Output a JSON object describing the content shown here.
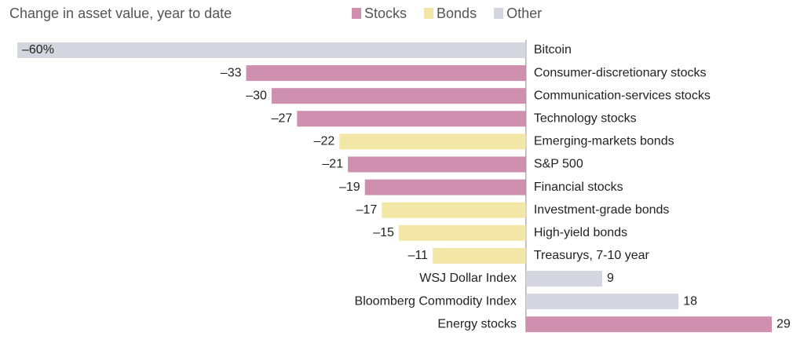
{
  "chart_data": {
    "type": "hbar",
    "title": "Change in asset value, year to date",
    "categories": [
      "Bitcoin",
      "Consumer-discretionary stocks",
      "Communication-services stocks",
      "Technology stocks",
      "Emerging-markets bonds",
      "S&P 500",
      "Financial stocks",
      "Investment-grade bonds",
      "High-yield bonds",
      "Treasurys, 7-10 year",
      "WSJ Dollar Index",
      "Bloomberg Commodity Index",
      "Energy stocks"
    ],
    "series": [
      {
        "name": "Stocks",
        "color": "#cf8fae",
        "values": [
          null,
          -33,
          -30,
          -27,
          null,
          -21,
          -19,
          null,
          null,
          null,
          null,
          null,
          29
        ],
        "value_labels": [
          null,
          "–33",
          "–30",
          "–27",
          null,
          "–21",
          "–19",
          null,
          null,
          null,
          null,
          null,
          "29"
        ]
      },
      {
        "name": "Bonds",
        "color": "#f3e7a8",
        "values": [
          null,
          null,
          null,
          null,
          -22,
          null,
          null,
          -17,
          -15,
          -11,
          null,
          null,
          null
        ],
        "value_labels": [
          null,
          null,
          null,
          null,
          "–22",
          null,
          null,
          "–17",
          "–15",
          "–11",
          null,
          null,
          null
        ]
      },
      {
        "name": "Other",
        "color": "#d3d5df",
        "values": [
          -60,
          null,
          null,
          null,
          null,
          null,
          null,
          null,
          null,
          null,
          9,
          18,
          null
        ],
        "value_labels": [
          "–60%",
          null,
          null,
          null,
          null,
          null,
          null,
          null,
          null,
          null,
          "9",
          "18",
          null
        ]
      }
    ],
    "xlim": [
      -60,
      29
    ]
  }
}
